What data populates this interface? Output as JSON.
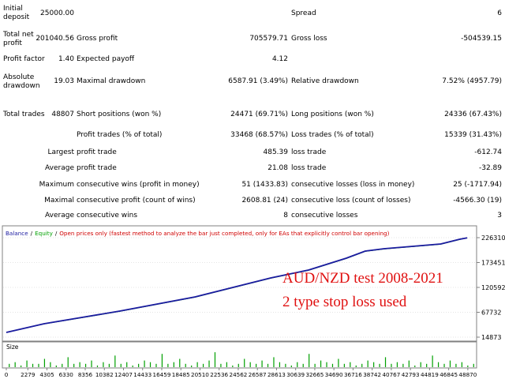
{
  "report": {
    "rows": [
      {
        "label1": "Initial deposit",
        "value1": "25000.00",
        "label3": "Spread",
        "value3": "6"
      },
      {
        "label1": "Total net profit",
        "value1": "201040.56",
        "label2": "Gross profit",
        "value2": "705579.71",
        "label3": "Gross loss",
        "value3": "-504539.15"
      },
      {
        "label1": "Profit factor",
        "value1": "1.40",
        "label2": "Expected payoff",
        "value2": "4.12"
      },
      {
        "label1": "Absolute drawdown",
        "value1": "19.03",
        "label2": "Maximal drawdown",
        "value2": "6587.91 (3.49%)",
        "label3": "Relative drawdown",
        "value3": "7.52% (4957.79)"
      },
      {
        "label1": "Total trades",
        "value1": "48807",
        "label2": "Short positions (won %)",
        "value2": "24471 (69.71%)",
        "label3": "Long positions (won %)",
        "value3": "24336 (67.43%)"
      },
      {
        "label2": "Profit trades (% of total)",
        "value2": "33468 (68.57%)",
        "label3": "Loss trades (% of total)",
        "value3": "15339 (31.43%)"
      },
      {
        "prefix": "Largest",
        "label2": "profit trade",
        "value2": "485.39",
        "label3": "loss trade",
        "value3": "-612.74"
      },
      {
        "prefix": "Average",
        "label2": "profit trade",
        "value2": "21.08",
        "label3": "loss trade",
        "value3": "-32.89"
      },
      {
        "prefix": "Maximum",
        "label2": "consecutive wins (profit in money)",
        "value2": "51 (1433.83)",
        "label3": "consecutive losses (loss in money)",
        "value3": "25 (-1717.94)"
      },
      {
        "prefix": "Maximal",
        "label2": "consecutive profit (count of wins)",
        "value2": "2608.81 (24)",
        "label3": "consecutive loss (count of losses)",
        "value3": "-4566.30 (19)"
      },
      {
        "prefix": "Average",
        "label2": "consecutive wins",
        "value2": "8",
        "label3": "consecutive losses",
        "value3": "3"
      }
    ]
  },
  "chart_data": [
    {
      "type": "line",
      "legend_separator": "/",
      "legend_note": "Open prices only (fastest method to analyze the bar just completed, only for EAs that explicitly control bar opening)",
      "legend_note_color": "#d00000",
      "annotations": [
        "AUD/NZD test 2008-2021",
        "2 type stop loss used"
      ],
      "annotation_color": "#e01010",
      "x": [
        0,
        4000,
        8000,
        12000,
        16000,
        20000,
        24000,
        28000,
        32000,
        36000,
        38000,
        40000,
        42000,
        44000,
        46000,
        48000,
        48807
      ],
      "series": [
        {
          "name": "Equity",
          "color": "#00a000",
          "values": [
            25000,
            43000,
            56300,
            69800,
            84900,
            99900,
            120100,
            140200,
            157000,
            182200,
            197300,
            202300,
            205700,
            209100,
            212400,
            222500,
            226041
          ]
        },
        {
          "name": "Balance",
          "color": "#1b1ba0",
          "values": [
            25000,
            43400,
            56800,
            70200,
            85300,
            100400,
            120600,
            140700,
            157500,
            182700,
            197800,
            202800,
            206200,
            209600,
            212900,
            223000,
            226041
          ]
        }
      ],
      "xlim": [
        0,
        49800
      ],
      "xticks": [
        0,
        2279,
        4305,
        6330,
        8356,
        10382,
        12407,
        14433,
        16459,
        18485,
        20510,
        22536,
        24562,
        26587,
        28613,
        30639,
        32665,
        34690,
        36716,
        38742,
        40767,
        42793,
        44819,
        46845,
        48870
      ],
      "ylim": [
        9839,
        248124
      ],
      "yticks": [
        14873,
        67732,
        120592,
        173451,
        226310
      ],
      "grid": true
    },
    {
      "type": "bar",
      "title": "Size",
      "color": "#00a000",
      "ylim": [
        0,
        10
      ],
      "values": [
        2,
        3,
        1,
        4,
        2,
        2,
        5,
        3,
        1,
        2,
        6,
        2,
        3,
        2,
        4,
        1,
        3,
        2,
        7,
        2,
        3,
        1,
        2,
        4,
        3,
        2,
        8,
        2,
        3,
        5,
        2,
        1,
        3,
        2,
        4,
        9,
        2,
        3,
        1,
        2,
        5,
        3,
        2,
        4,
        2,
        6,
        3,
        2,
        1,
        3,
        2,
        8,
        2,
        4,
        3,
        2,
        5,
        2,
        3,
        1,
        2,
        4,
        3,
        2,
        6,
        2,
        3,
        2,
        4,
        1,
        3,
        2,
        7,
        3,
        2,
        4,
        2,
        3,
        1,
        2
      ]
    }
  ]
}
